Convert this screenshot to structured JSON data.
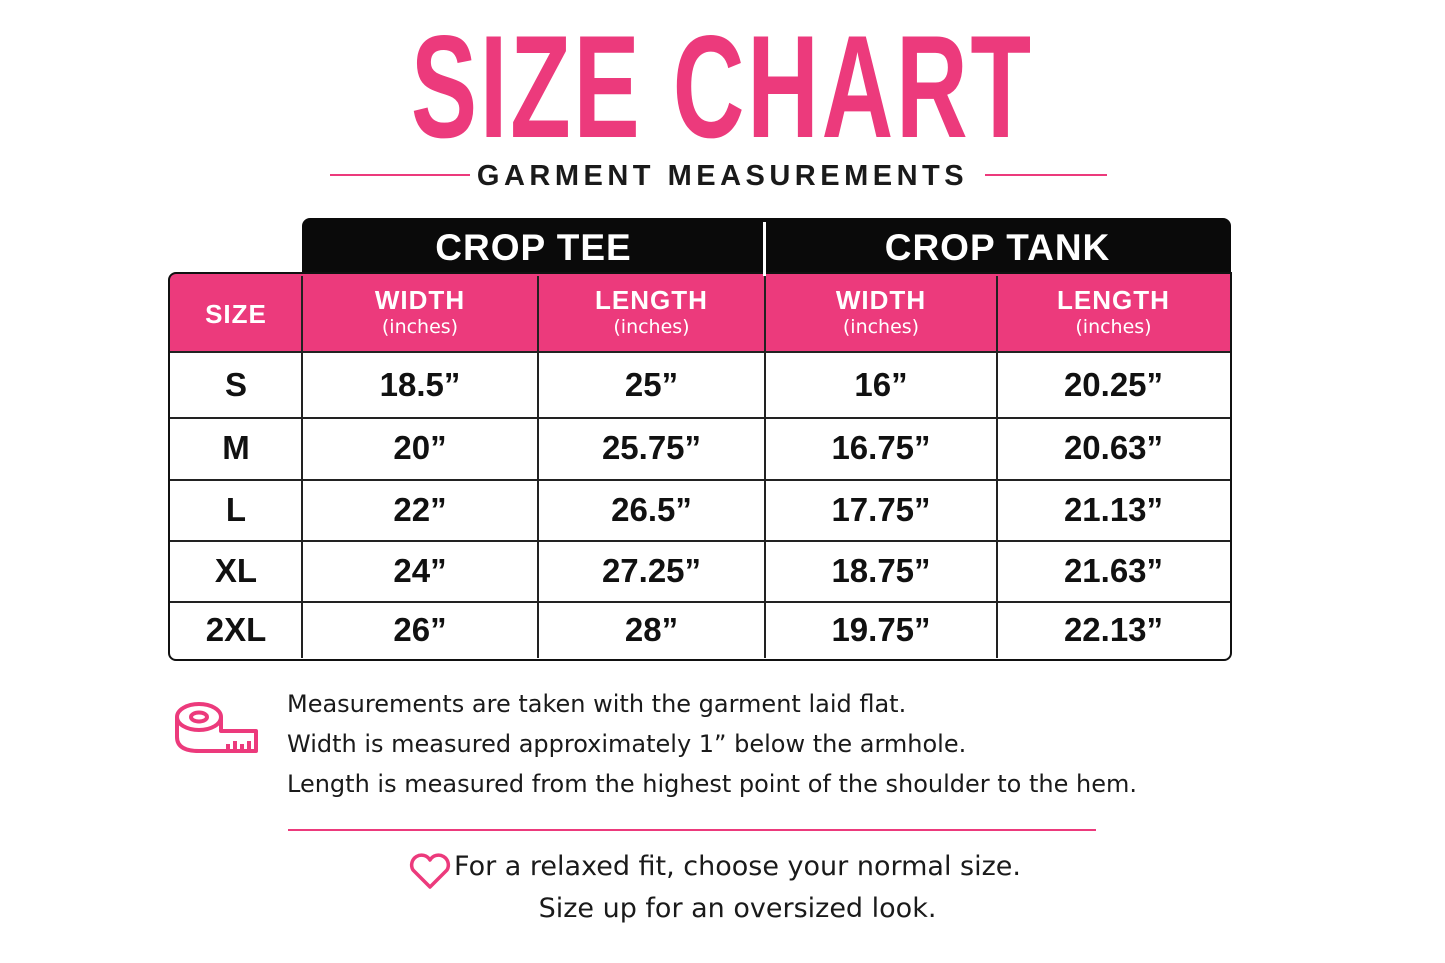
{
  "title": "SIZE CHART",
  "subtitle": "GARMENT MEASUREMENTS",
  "table": {
    "groups": [
      "CROP TEE",
      "CROP TANK"
    ],
    "size_header": "SIZE",
    "columns": [
      {
        "label": "WIDTH",
        "unit": "(inches)"
      },
      {
        "label": "LENGTH",
        "unit": "(inches)"
      },
      {
        "label": "WIDTH",
        "unit": "(inches)"
      },
      {
        "label": "LENGTH",
        "unit": "(inches)"
      }
    ],
    "rows": [
      [
        "S",
        "18.5”",
        "25”",
        "16”",
        "20.25”"
      ],
      [
        "M",
        "20”",
        "25.75”",
        "16.75”",
        "20.63”"
      ],
      [
        "L",
        "22”",
        "26.5”",
        "17.75”",
        "21.13”"
      ],
      [
        "XL",
        "24”",
        "27.25”",
        "18.75”",
        "21.63”"
      ],
      [
        "2XL",
        "26”",
        "28”",
        "19.75”",
        "22.13”"
      ]
    ]
  },
  "notes": [
    "Measurements are taken with the garment laid flat.",
    "Width is measured approximately 1” below the armhole.",
    "Length is measured from the highest point of the shoulder to the hem."
  ],
  "tip": [
    "For a relaxed fit, choose your normal size.",
    "Size up for an oversized look."
  ]
}
